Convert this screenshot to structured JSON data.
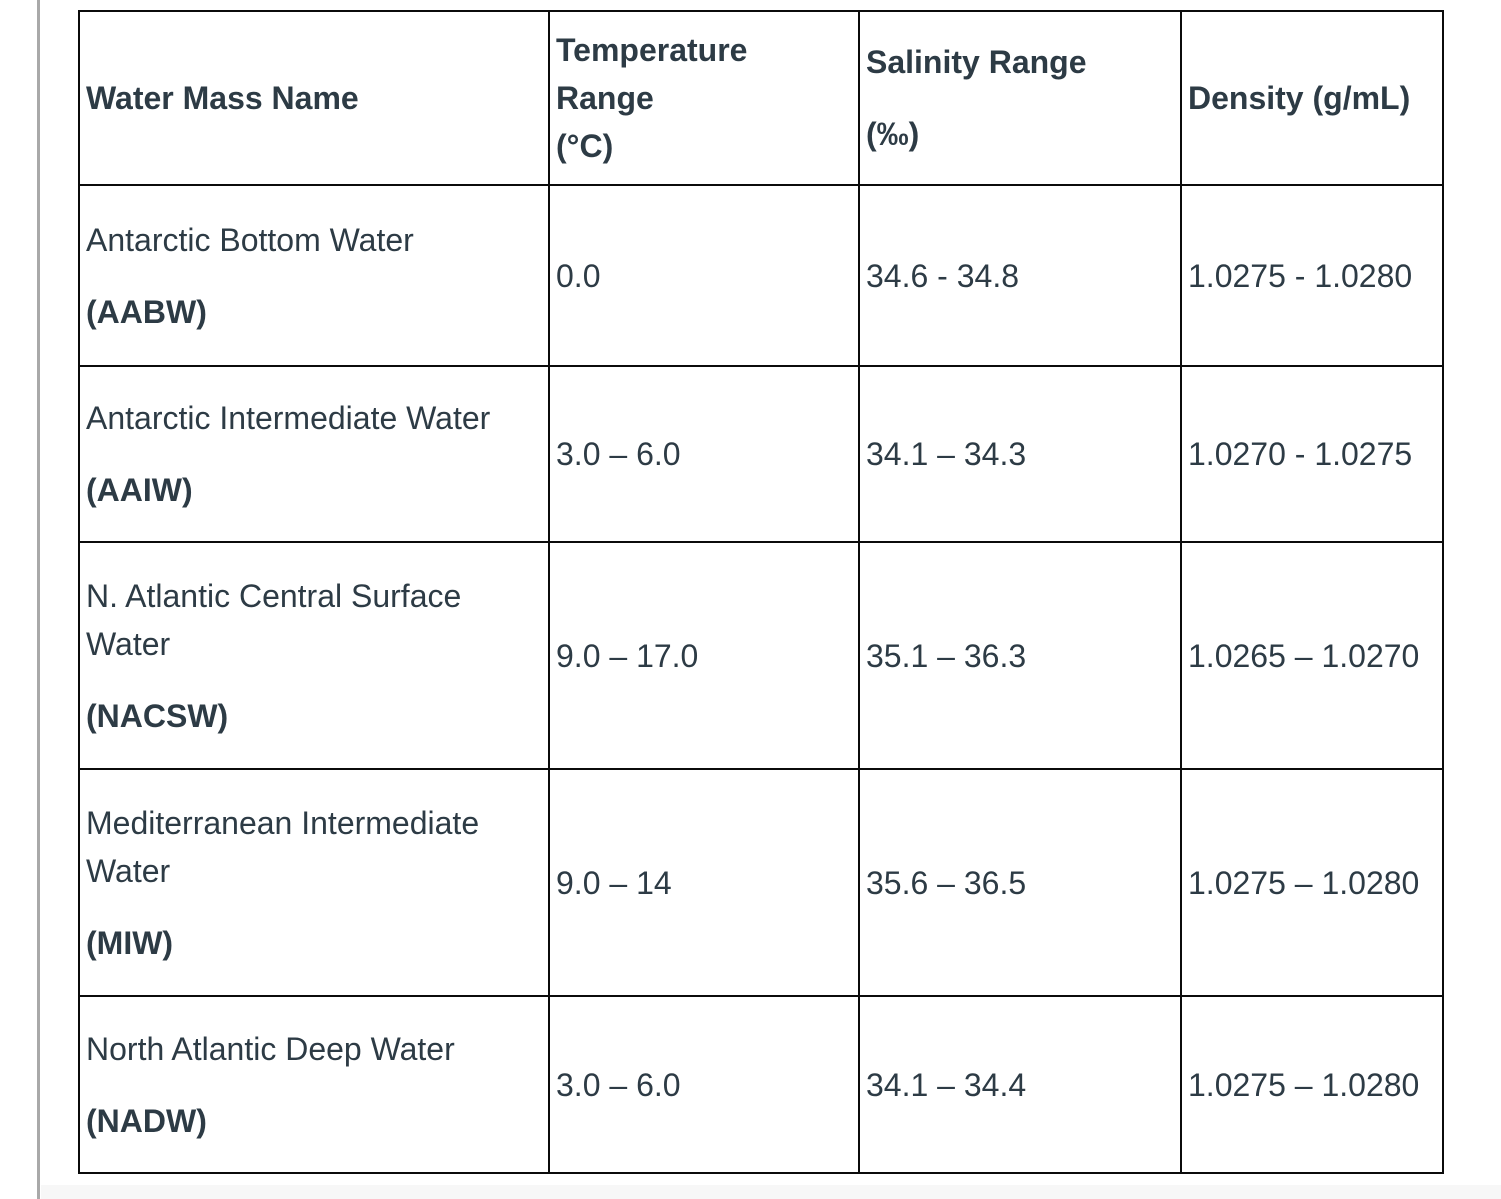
{
  "page": {
    "background_color": "#ffffff",
    "divider_color": "#a9a9a9",
    "bottom_strip_color": "#f7f7f7",
    "text_color": "#2d3b45",
    "table_border_color": "#0b0b0b"
  },
  "table": {
    "columns": [
      {
        "key": "name",
        "paragraphs": [
          {
            "lines": [
              "Water Mass Name"
            ],
            "bold": true
          }
        ]
      },
      {
        "key": "temperature",
        "paragraphs": [
          {
            "lines": [
              "Temperature Range",
              "(°C)"
            ],
            "bold": true
          }
        ]
      },
      {
        "key": "salinity",
        "paragraphs": [
          {
            "lines": [
              "Salinity Range"
            ],
            "bold": true
          },
          {
            "lines": [
              "(‰)"
            ],
            "bold": true
          }
        ]
      },
      {
        "key": "density",
        "paragraphs": [
          {
            "lines": [
              "Density (g/mL)"
            ],
            "bold": true
          }
        ]
      }
    ],
    "rows": [
      {
        "name": [
          {
            "lines": [
              "Antarctic Bottom Water"
            ],
            "bold": false
          },
          {
            "lines": [
              "(AABW)"
            ],
            "bold": true
          }
        ],
        "temperature": "0.0",
        "salinity": "34.6 - 34.8",
        "density": "1.0275 - 1.0280"
      },
      {
        "name": [
          {
            "lines": [
              "Antarctic Intermediate Water"
            ],
            "bold": false
          },
          {
            "lines": [
              "(AAIW)"
            ],
            "bold": true
          }
        ],
        "temperature": "3.0 – 6.0",
        "salinity": "34.1 – 34.3",
        "density": "1.0270 - 1.0275"
      },
      {
        "name": [
          {
            "lines": [
              "N. Atlantic Central Surface",
              "Water"
            ],
            "bold": false
          },
          {
            "lines": [
              "(NACSW)"
            ],
            "bold": true
          }
        ],
        "temperature": "9.0 – 17.0",
        "salinity": "35.1 – 36.3",
        "density": "1.0265 – 1.0270"
      },
      {
        "name": [
          {
            "lines": [
              "Mediterranean Intermediate",
              "Water"
            ],
            "bold": false
          },
          {
            "lines": [
              "(MIW)"
            ],
            "bold": true
          }
        ],
        "temperature": "9.0 – 14",
        "salinity": "35.6 – 36.5",
        "density": "1.0275 – 1.0280"
      },
      {
        "name": [
          {
            "lines": [
              "North Atlantic Deep Water"
            ],
            "bold": false
          },
          {
            "lines": [
              "(NADW)"
            ],
            "bold": true
          }
        ],
        "temperature": "3.0 – 6.0",
        "salinity": "34.1 – 34.4",
        "density": "1.0275 – 1.0280"
      }
    ]
  }
}
